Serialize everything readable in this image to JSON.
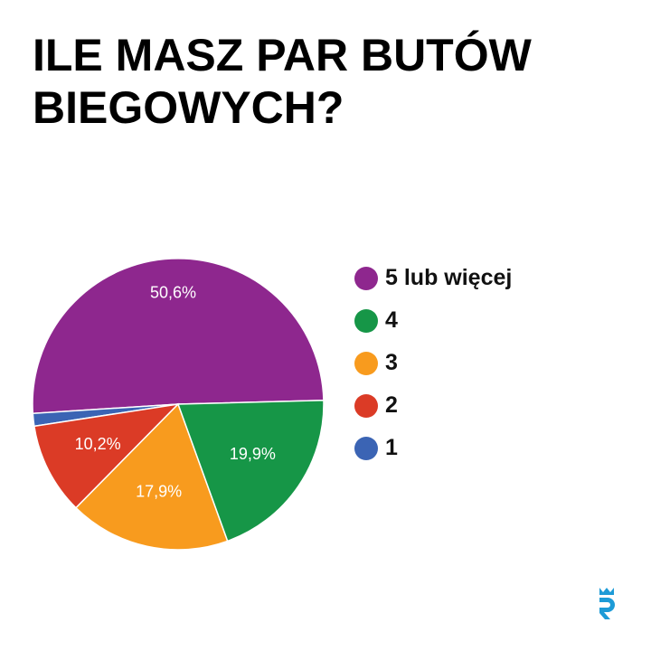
{
  "title_lines": [
    "ILE MASZ PAR BUTÓW",
    "BIEGOWYCH?"
  ],
  "colors": {
    "five_plus": "#8e278e",
    "four": "#169647",
    "three": "#f89b1e",
    "two": "#db3b26",
    "one": "#3b64b4",
    "logo": "#1d9bd7"
  },
  "chart_data": {
    "type": "pie",
    "title": "ILE MASZ PAR BUTÓW BIEGOWYCH?",
    "legend_position": "right",
    "slices": [
      {
        "name": "5 lub więcej",
        "value": 50.6,
        "label": "50,6%",
        "color": "#8e278e"
      },
      {
        "name": "1",
        "value": 1.4,
        "label": "",
        "color": "#3b64b4"
      },
      {
        "name": "2",
        "value": 10.2,
        "label": "10,2%",
        "color": "#db3b26"
      },
      {
        "name": "3",
        "value": 17.9,
        "label": "17,9%",
        "color": "#f89b1e"
      },
      {
        "name": "4",
        "value": 19.9,
        "label": "19,9%",
        "color": "#169647"
      }
    ]
  },
  "legend": [
    {
      "label": "5 lub więcej",
      "color": "#8e278e"
    },
    {
      "label": "4",
      "color": "#169647"
    },
    {
      "label": "3",
      "color": "#f89b1e"
    },
    {
      "label": "2",
      "color": "#db3b26"
    },
    {
      "label": "1",
      "color": "#3b64b4"
    }
  ],
  "logo_icon": "brand-logo-icon"
}
